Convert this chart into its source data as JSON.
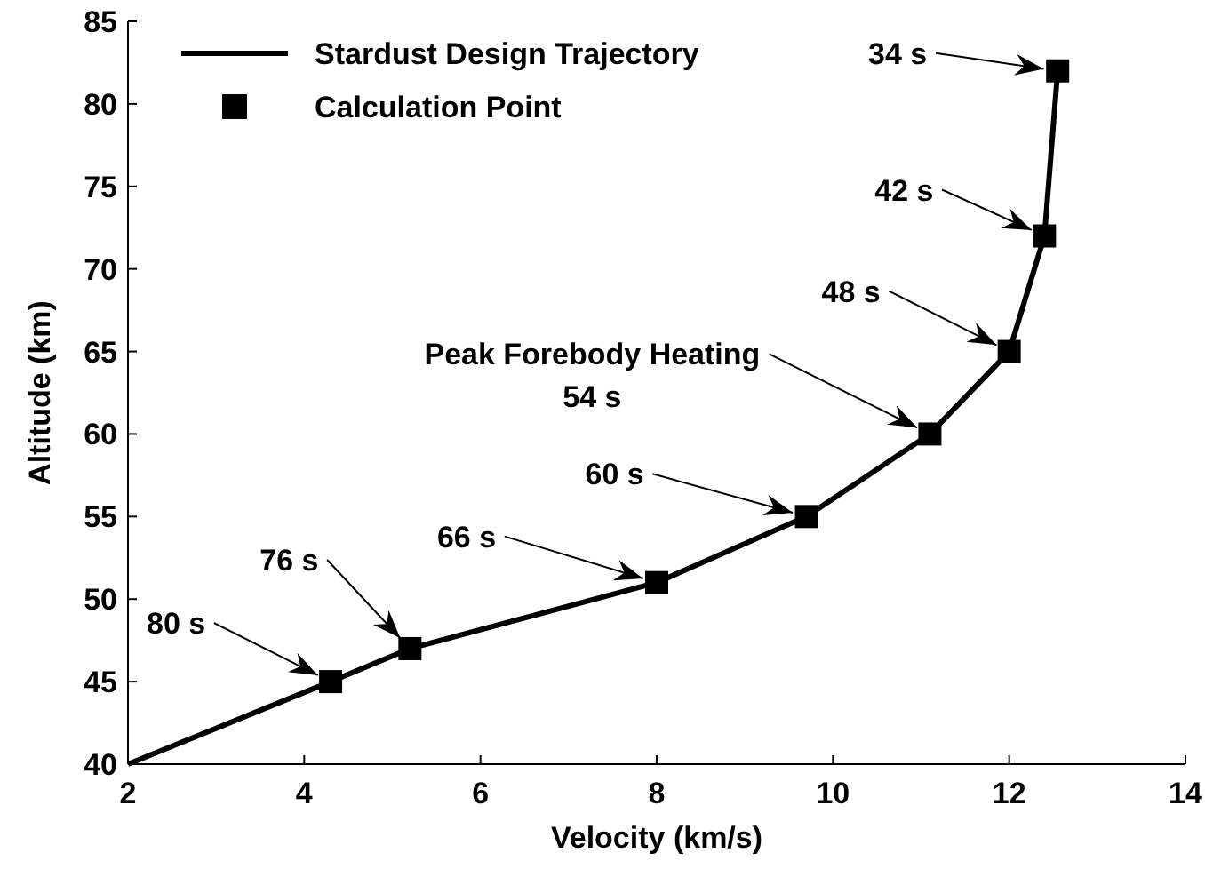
{
  "chart_data": {
    "type": "line",
    "xlabel": "Velocity (km/s)",
    "ylabel": "Altitude (km)",
    "series": [
      {
        "name": "Stardust Design Trajectory",
        "type": "line",
        "color": "#000000",
        "marker": "none",
        "line_style": "solid",
        "x": [
          2,
          4.3,
          5.2,
          8.0,
          9.7,
          11.1,
          12.0,
          12.4,
          12.55
        ],
        "values": [
          40,
          45,
          47,
          51,
          55,
          60,
          65,
          72,
          82
        ]
      },
      {
        "name": "Calculation Point",
        "type": "scatter",
        "color": "#000000",
        "marker": "square",
        "x": [
          4.3,
          5.2,
          8.0,
          9.7,
          11.1,
          12.0,
          12.4,
          12.55
        ],
        "values": [
          45,
          47,
          51,
          55,
          60,
          65,
          72,
          82
        ]
      }
    ],
    "xlim": [
      2,
      14
    ],
    "xticks": [
      2,
      4,
      6,
      8,
      10,
      12,
      14
    ],
    "ylim": [
      40,
      85
    ],
    "yticks": [
      40,
      45,
      50,
      55,
      60,
      65,
      70,
      75,
      80,
      85
    ],
    "grid": false,
    "legend": "top left",
    "annotations": [
      {
        "text": "34 s",
        "x": 12.55,
        "y": 82
      },
      {
        "text": "42 s",
        "x": 12.4,
        "y": 72
      },
      {
        "text": "48 s",
        "x": 12.0,
        "y": 65
      },
      {
        "text": "Peak Forebody Heating\n54 s",
        "x": 11.1,
        "y": 60
      },
      {
        "text": "60 s",
        "x": 9.7,
        "y": 55
      },
      {
        "text": "66 s",
        "x": 8.0,
        "y": 51
      },
      {
        "text": "76 s",
        "x": 5.2,
        "y": 47
      },
      {
        "text": "80 s",
        "x": 4.3,
        "y": 45
      }
    ]
  }
}
